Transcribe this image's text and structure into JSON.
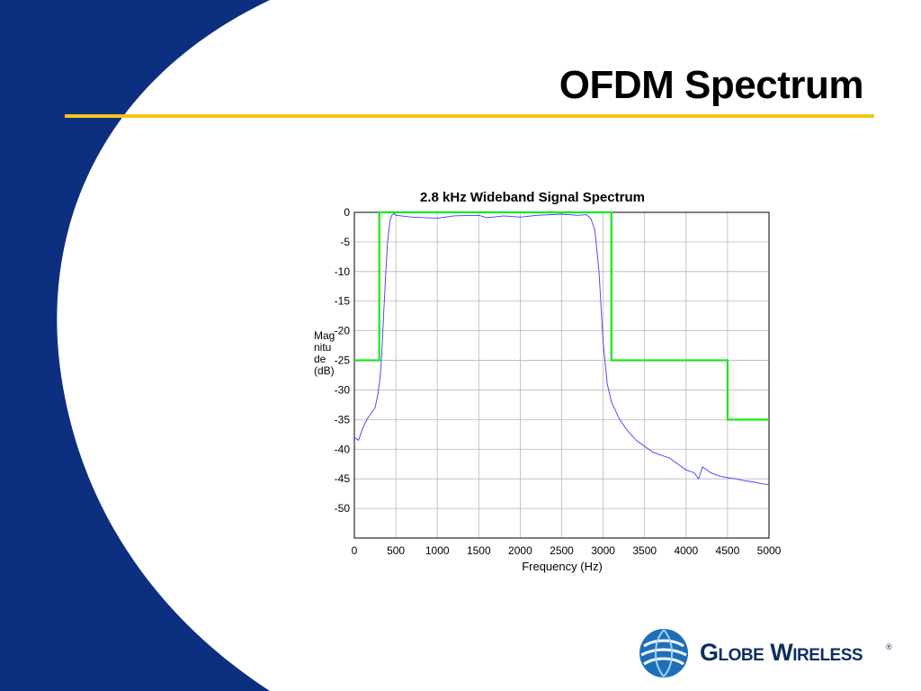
{
  "slide": {
    "title": "OFDM Spectrum",
    "colors": {
      "background_blue": "#0d2f7f",
      "rule_yellow": "#f2c51c"
    }
  },
  "logo": {
    "text": "Globe Wireless",
    "reg_mark": "®",
    "icon": "globe-icon"
  },
  "chart_data": {
    "type": "line",
    "title": "2.8 kHz Wideband Signal Spectrum",
    "xlabel": "Frequency (Hz)",
    "ylabel": "Magnitude (dB)",
    "xlim": [
      0,
      5000
    ],
    "ylim": [
      -55,
      0
    ],
    "xticks": [
      0,
      500,
      1000,
      1500,
      2000,
      2500,
      3000,
      3500,
      4000,
      4500,
      5000
    ],
    "yticks": [
      0,
      -5,
      -10,
      -15,
      -20,
      -25,
      -30,
      -35,
      -40,
      -45,
      -50
    ],
    "grid": true,
    "series": [
      {
        "color": "#3a3aff",
        "x": [
          0,
          50,
          100,
          150,
          200,
          250,
          280,
          310,
          330,
          350,
          380,
          400,
          430,
          450,
          480,
          500,
          700,
          1000,
          1200,
          1500,
          1600,
          1800,
          2000,
          2200,
          2500,
          2700,
          2800,
          2850,
          2900,
          2950,
          3000,
          3050,
          3100,
          3200,
          3300,
          3400,
          3500,
          3600,
          3700,
          3800,
          3900,
          4000,
          4100,
          4150,
          4200,
          4300,
          4400,
          4500,
          4600,
          4700,
          4800,
          4900,
          5000
        ],
        "y": [
          -38,
          -38.5,
          -36.5,
          -35,
          -34,
          -33,
          -31,
          -28,
          -24,
          -18,
          -10,
          -5,
          -1.5,
          -0.5,
          -0.2,
          -0.5,
          -0.8,
          -1,
          -0.6,
          -0.5,
          -0.9,
          -0.6,
          -0.8,
          -0.5,
          -0.3,
          -0.5,
          -0.4,
          -1,
          -3,
          -10,
          -22,
          -29,
          -32,
          -35,
          -37,
          -38.5,
          -39.5,
          -40.5,
          -41,
          -41.5,
          -42.5,
          -43.5,
          -44,
          -45,
          -43,
          -44,
          -44.5,
          -44.8,
          -45,
          -45.3,
          -45.5,
          -45.8,
          -46
        ]
      },
      {
        "color": "#1ee61e",
        "x": [
          0,
          300,
          300,
          3100,
          3100,
          4500,
          4500,
          5000
        ],
        "y": [
          -25,
          -25,
          0,
          0,
          -25,
          -25,
          -35,
          -35
        ]
      }
    ]
  }
}
